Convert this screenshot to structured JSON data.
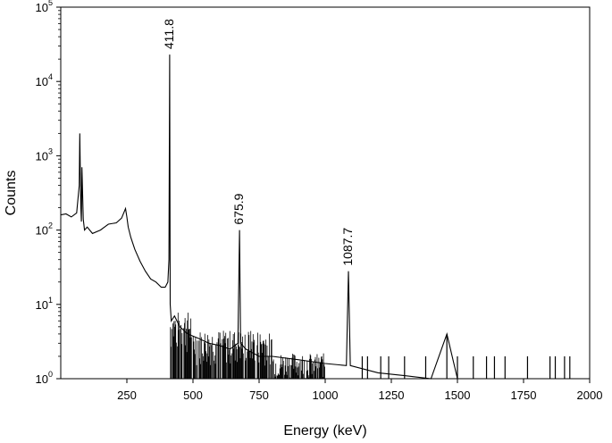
{
  "chart_data": {
    "type": "line",
    "xlabel": "Energy (keV)",
    "ylabel": "Counts",
    "xlim": [
      0,
      2000
    ],
    "ylim": [
      1,
      100000
    ],
    "y_scale": "log",
    "x_ticks": [
      250,
      500,
      750,
      1000,
      1250,
      1500,
      1750,
      2000
    ],
    "y_ticks": [
      {
        "base": "10",
        "exp": "0",
        "value": 1
      },
      {
        "base": "10",
        "exp": "1",
        "value": 10
      },
      {
        "base": "10",
        "exp": "2",
        "value": 100
      },
      {
        "base": "10",
        "exp": "3",
        "value": 1000
      },
      {
        "base": "10",
        "exp": "4",
        "value": 10000
      },
      {
        "base": "10",
        "exp": "5",
        "value": 100000
      }
    ],
    "grid": false,
    "line_color": "#000000",
    "peak_labels": [
      {
        "text": "411.8",
        "x": 411.8,
        "y": 23000
      },
      {
        "text": "675.9",
        "x": 675.9,
        "y": 100
      },
      {
        "text": "1087.7",
        "x": 1087.7,
        "y": 28
      }
    ],
    "series": [
      {
        "x": [
          0,
          20,
          40,
          60,
          70,
          72,
          74,
          76,
          78,
          80,
          85,
          90,
          100,
          120,
          150,
          180,
          210,
          230,
          245,
          250,
          255,
          265,
          280,
          300,
          320,
          340,
          360,
          380,
          395,
          405,
          409,
          411.8,
          414,
          418,
          430,
          450,
          480,
          520,
          560,
          600,
          640,
          670,
          675.9,
          680,
          700,
          750,
          800,
          900,
          1000,
          1080,
          1087.7,
          1095,
          1200,
          1300,
          1400,
          1460,
          1500,
          1600,
          1700,
          1800,
          1900,
          1920
        ],
        "y": [
          160,
          165,
          150,
          170,
          400,
          2000,
          600,
          200,
          130,
          700,
          140,
          100,
          110,
          90,
          100,
          120,
          125,
          145,
          195,
          150,
          110,
          80,
          55,
          38,
          28,
          22,
          20,
          17,
          17,
          20,
          40,
          23000,
          10,
          6,
          7,
          5,
          4,
          3.5,
          3,
          2.8,
          2.5,
          3,
          100,
          3,
          2.5,
          2,
          2,
          1.8,
          1.6,
          1.5,
          28,
          1.5,
          1.2,
          1.1,
          1,
          4,
          1,
          1,
          1,
          1,
          1,
          1
        ]
      }
    ],
    "sparse_counts": [
      {
        "x": 1140,
        "y": 2
      },
      {
        "x": 1160,
        "y": 2
      },
      {
        "x": 1180,
        "y": 1
      },
      {
        "x": 1210,
        "y": 2
      },
      {
        "x": 1240,
        "y": 2
      },
      {
        "x": 1265,
        "y": 1
      },
      {
        "x": 1300,
        "y": 2
      },
      {
        "x": 1380,
        "y": 2
      },
      {
        "x": 1410,
        "y": 1
      },
      {
        "x": 1460,
        "y": 4
      },
      {
        "x": 1500,
        "y": 2
      },
      {
        "x": 1560,
        "y": 2
      },
      {
        "x": 1610,
        "y": 2
      },
      {
        "x": 1640,
        "y": 2
      },
      {
        "x": 1680,
        "y": 2
      },
      {
        "x": 1765,
        "y": 2
      },
      {
        "x": 1850,
        "y": 2
      },
      {
        "x": 1870,
        "y": 2
      },
      {
        "x": 1905,
        "y": 2
      },
      {
        "x": 1925,
        "y": 2
      }
    ]
  }
}
